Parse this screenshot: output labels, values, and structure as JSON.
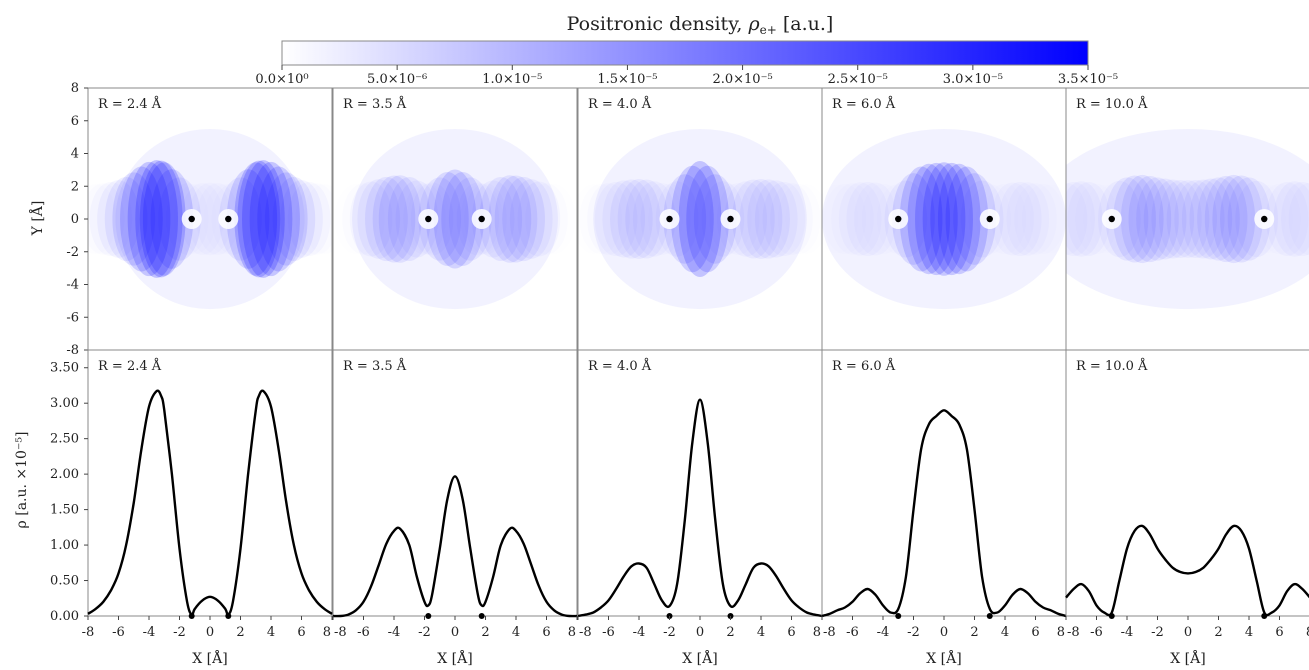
{
  "colorbar": {
    "title": "Positronic density, ρe+ [a.u.]",
    "title_main": "Positronic density, ",
    "title_rho": "ρ",
    "title_sub": "e+",
    "title_unit": " [a.u.]",
    "ticks": [
      "0.0×10⁰",
      "5.0×10⁻⁶",
      "1.0×10⁻⁵",
      "1.5×10⁻⁵",
      "2.0×10⁻⁵",
      "2.5×10⁻⁵",
      "3.0×10⁻⁵",
      "3.5×10⁻⁵"
    ],
    "range": [
      0,
      3.5e-05
    ],
    "color_low": "#ffffff",
    "color_high": "#0000ff"
  },
  "chart_data": [
    {
      "type": "heatmap",
      "description_panels": "Top row: 2D positronic density maps",
      "xlim": [
        -8,
        8
      ],
      "ylim": [
        -8,
        8
      ],
      "ylabel": "Y [Å]",
      "yticks": [
        "8",
        "6",
        "4",
        "2",
        "0",
        "-2",
        "-4",
        "-6",
        "-8"
      ],
      "panels": [
        {
          "label": "R = 2.4 Å",
          "R": 2.4,
          "nuclei_x": [
            -1.2,
            1.2
          ],
          "peak_density": 3.2e-05
        },
        {
          "label": "R = 3.5 Å",
          "R": 3.5,
          "nuclei_x": [
            -1.75,
            1.75
          ],
          "peak_density": 2e-05
        },
        {
          "label": "R = 4.0 Å",
          "R": 4.0,
          "nuclei_x": [
            -2.0,
            2.0
          ],
          "peak_density": 3.05e-05
        },
        {
          "label": "R = 6.0 Å",
          "R": 6.0,
          "nuclei_x": [
            -3.0,
            3.0
          ],
          "peak_density": 2.9e-05
        },
        {
          "label": "R = 10.0 Å",
          "R": 10.0,
          "nuclei_x": [
            -5.0,
            5.0
          ],
          "peak_density": 1.27e-05
        }
      ]
    },
    {
      "type": "line",
      "xlim": [
        -8,
        8
      ],
      "ylim": [
        0,
        3.75
      ],
      "xlabel": "X [Å]",
      "ylabel": "ρ [a.u. ×10⁻⁵]",
      "xticks": [
        "-8",
        "-6",
        "-4",
        "-2",
        "0",
        "2",
        "4",
        "6",
        "8"
      ],
      "yticks": [
        "0.00",
        "0.50",
        "1.00",
        "1.50",
        "2.00",
        "2.50",
        "3.00",
        "3.50"
      ],
      "series": [
        {
          "label": "R = 2.4 Å",
          "x": [
            -8,
            -7.5,
            -7,
            -6.5,
            -6,
            -5.5,
            -5,
            -4.5,
            -4,
            -3.5,
            -3.2,
            -3,
            -2.5,
            -2,
            -1.5,
            -1.2,
            -1,
            -0.5,
            0,
            0.5,
            1,
            1.2,
            1.5,
            2,
            2.5,
            3,
            3.2,
            3.5,
            4,
            4.5,
            5,
            5.5,
            6,
            6.5,
            7,
            7.5,
            8
          ],
          "y": [
            0.03,
            0.1,
            0.2,
            0.36,
            0.6,
            1.0,
            1.6,
            2.35,
            2.95,
            3.17,
            3.1,
            2.9,
            2.0,
            0.95,
            0.2,
            0.02,
            0.1,
            0.22,
            0.27,
            0.22,
            0.1,
            0.02,
            0.2,
            0.95,
            2.0,
            2.9,
            3.1,
            3.17,
            2.95,
            2.35,
            1.6,
            1.0,
            0.6,
            0.36,
            0.2,
            0.1,
            0.03
          ]
        },
        {
          "label": "R = 3.5 Å",
          "x": [
            -8,
            -7.5,
            -7,
            -6.5,
            -6,
            -5.5,
            -5,
            -4.5,
            -4,
            -3.6,
            -3,
            -2.5,
            -2,
            -1.75,
            -1.5,
            -1,
            -0.5,
            0,
            0.5,
            1,
            1.5,
            1.75,
            2,
            2.5,
            3,
            3.6,
            4,
            4.5,
            5,
            5.5,
            6,
            6.5,
            7,
            7.5,
            8
          ],
          "y": [
            0.0,
            0.0,
            0.02,
            0.08,
            0.2,
            0.42,
            0.72,
            1.02,
            1.2,
            1.23,
            1.0,
            0.55,
            0.2,
            0.15,
            0.3,
            0.95,
            1.65,
            1.97,
            1.65,
            0.95,
            0.3,
            0.15,
            0.2,
            0.55,
            1.0,
            1.23,
            1.2,
            1.02,
            0.72,
            0.42,
            0.2,
            0.08,
            0.02,
            0.0,
            0.0
          ]
        },
        {
          "label": "R = 4.0 Å",
          "x": [
            -8,
            -7.5,
            -7,
            -6.5,
            -6,
            -5.5,
            -5,
            -4.5,
            -4,
            -3.5,
            -3,
            -2.5,
            -2,
            -1.5,
            -1,
            -0.5,
            0,
            0.5,
            1,
            1.5,
            2,
            2.5,
            3,
            3.5,
            4,
            4.5,
            5,
            5.5,
            6,
            6.5,
            7,
            7.5,
            8
          ],
          "y": [
            0.0,
            0.02,
            0.05,
            0.12,
            0.22,
            0.38,
            0.56,
            0.7,
            0.74,
            0.68,
            0.45,
            0.22,
            0.14,
            0.45,
            1.35,
            2.45,
            3.05,
            2.45,
            1.35,
            0.45,
            0.14,
            0.22,
            0.45,
            0.68,
            0.74,
            0.7,
            0.56,
            0.38,
            0.22,
            0.12,
            0.05,
            0.02,
            0.0
          ]
        },
        {
          "label": "R = 6.0 Å",
          "x": [
            -8,
            -7.5,
            -7,
            -6.5,
            -6,
            -5.5,
            -5,
            -4.5,
            -4,
            -3.5,
            -3,
            -2.5,
            -2,
            -1.5,
            -1,
            -0.5,
            0,
            0.5,
            1,
            1.5,
            2,
            2.5,
            3,
            3.5,
            4,
            4.5,
            5,
            5.5,
            6,
            6.5,
            7,
            7.5,
            8
          ],
          "y": [
            0.0,
            0.03,
            0.08,
            0.12,
            0.2,
            0.32,
            0.38,
            0.3,
            0.15,
            0.05,
            0.1,
            0.55,
            1.5,
            2.35,
            2.7,
            2.82,
            2.9,
            2.82,
            2.7,
            2.35,
            1.5,
            0.55,
            0.1,
            0.05,
            0.15,
            0.3,
            0.38,
            0.32,
            0.2,
            0.12,
            0.08,
            0.03,
            0.0
          ]
        },
        {
          "label": "R = 10.0 Å",
          "x": [
            -8,
            -7.5,
            -7,
            -6.5,
            -6,
            -5.5,
            -5,
            -4.5,
            -4,
            -3.5,
            -3,
            -2.5,
            -2,
            -1.5,
            -1,
            -0.5,
            0,
            0.5,
            1,
            1.5,
            2,
            2.5,
            3,
            3.5,
            4,
            4.5,
            5,
            5.5,
            6,
            6.5,
            7,
            7.5,
            8
          ],
          "y": [
            0.26,
            0.38,
            0.45,
            0.35,
            0.15,
            0.05,
            0.05,
            0.5,
            0.95,
            1.2,
            1.27,
            1.15,
            0.95,
            0.8,
            0.68,
            0.62,
            0.6,
            0.62,
            0.68,
            0.8,
            0.95,
            1.15,
            1.27,
            1.2,
            0.95,
            0.5,
            0.05,
            0.05,
            0.15,
            0.35,
            0.45,
            0.38,
            0.26
          ]
        }
      ]
    }
  ]
}
